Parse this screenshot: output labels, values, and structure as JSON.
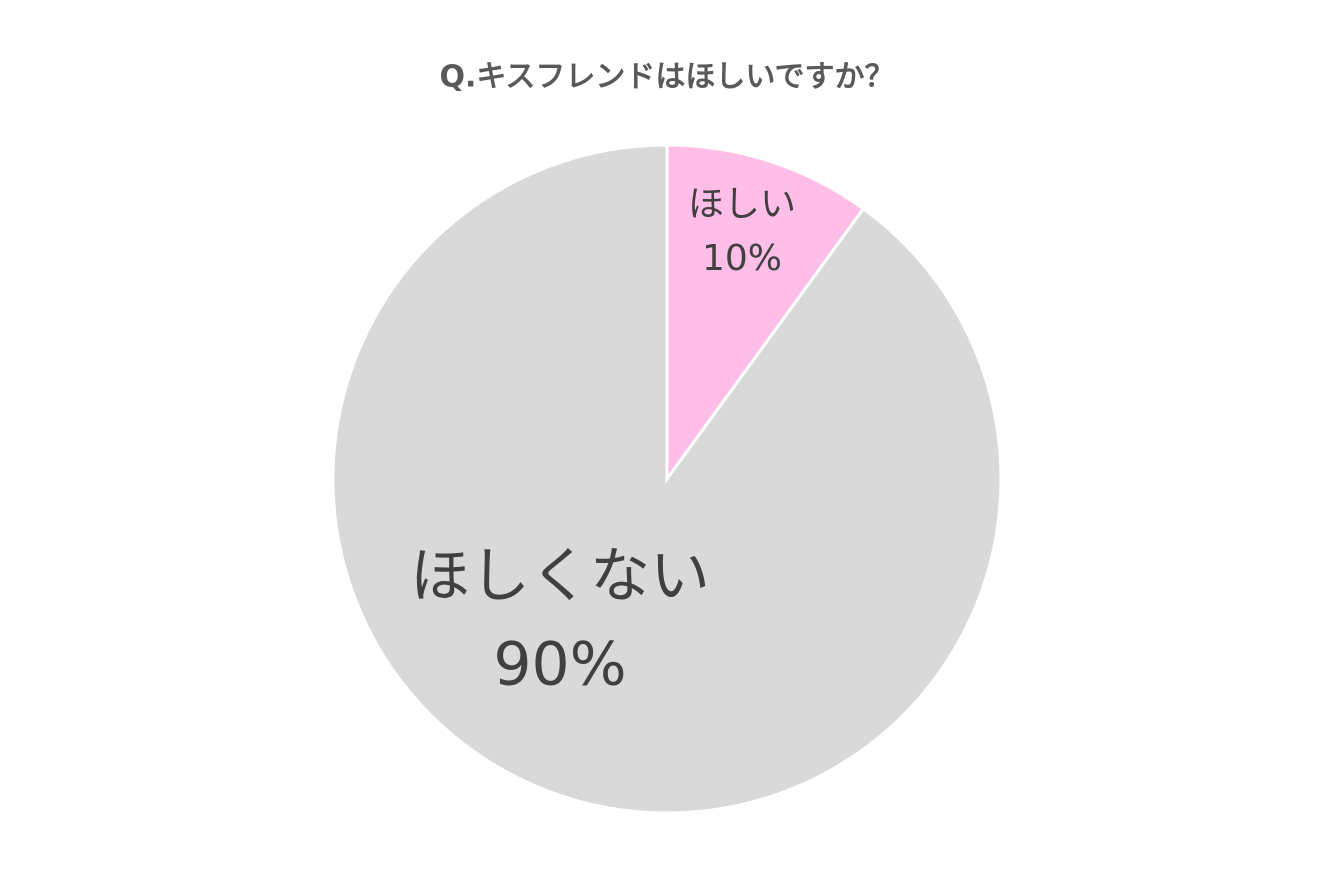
{
  "chart_data": {
    "type": "pie",
    "title": "Q.キスフレンドはほしいですか？",
    "categories": [
      "ほしい",
      "ほしくない"
    ],
    "values": [
      10,
      90
    ],
    "value_labels": [
      "10%",
      "90%"
    ],
    "colors": [
      "#ffbee8",
      "#d9d9d9"
    ]
  }
}
